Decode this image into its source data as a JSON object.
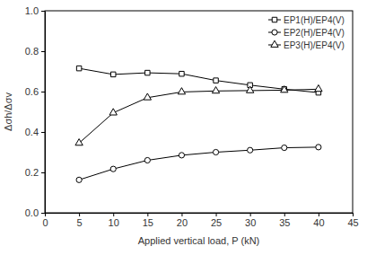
{
  "chart_data": {
    "type": "line",
    "x_label": "Applied vertical load, P (kN)",
    "y_label": "Δσh/Δσv",
    "x": [
      5,
      10,
      15,
      20,
      25,
      30,
      35,
      40
    ],
    "series": [
      {
        "name": "EP1(H)/EP4(V)",
        "color": "#000000",
        "marker": "square",
        "line_style": "solid",
        "values": [
          0.715,
          0.685,
          0.693,
          0.688,
          0.655,
          0.632,
          0.612,
          0.595
        ]
      },
      {
        "name": "EP2(H)/EP4(V)",
        "color": "#000000",
        "marker": "circle",
        "line_style": "solid",
        "values": [
          0.163,
          0.217,
          0.26,
          0.285,
          0.3,
          0.31,
          0.322,
          0.325
        ]
      },
      {
        "name": "EP3(H)/EP4(V)",
        "color": "#000000",
        "marker": "triangle",
        "line_style": "solid",
        "values": [
          0.345,
          0.495,
          0.57,
          0.598,
          0.603,
          0.605,
          0.607,
          0.612
        ]
      }
    ],
    "xlim": [
      0,
      45
    ],
    "xticks": [
      0,
      5,
      10,
      15,
      20,
      25,
      30,
      35,
      40,
      45
    ],
    "ylim": [
      0,
      1
    ],
    "yticks": [
      {
        "value": 0,
        "label": "0.0"
      },
      0.2,
      0.4,
      0.6,
      0.8,
      {
        "value": 1,
        "label": "1.0"
      }
    ],
    "grid": false,
    "legend": "upper right"
  }
}
